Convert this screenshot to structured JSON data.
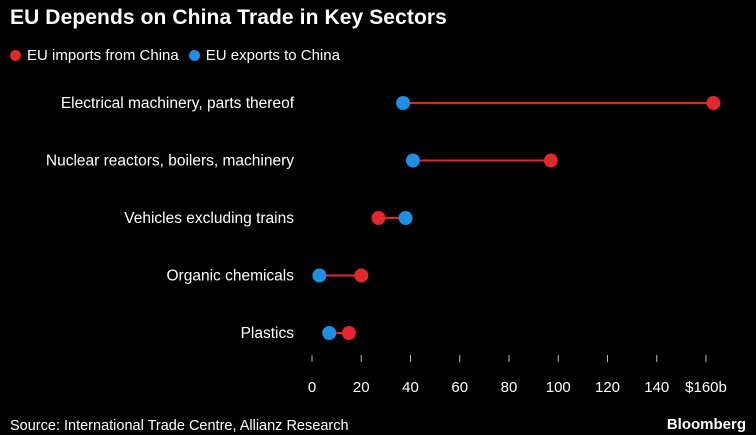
{
  "chart_data": {
    "type": "dot",
    "title": "EU Depends on China Trade in Key Sectors",
    "categories": [
      "Electrical machinery, parts thereof",
      "Nuclear reactors, boilers, machinery",
      "Vehicles excluding trains",
      "Organic chemicals",
      "Plastics"
    ],
    "series": [
      {
        "name": "EU imports from China",
        "color": "#e0282d",
        "values": [
          163,
          97,
          27,
          20,
          15
        ]
      },
      {
        "name": "EU exports to China",
        "color": "#1f8fe3",
        "values": [
          37,
          41,
          38,
          3,
          7
        ]
      }
    ],
    "x_ticks": [
      "0",
      "20",
      "40",
      "60",
      "80",
      "100",
      "120",
      "140",
      "$160b"
    ],
    "xlim": [
      0,
      160
    ],
    "connector_color": "#e0282d",
    "grid": false,
    "legend_position": "top-left"
  },
  "source": "Source: International Trade Centre, Allianz Research",
  "brand": "Bloomberg"
}
